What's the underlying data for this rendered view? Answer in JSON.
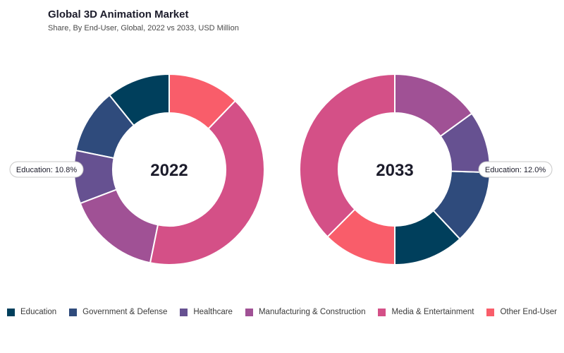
{
  "chart_data": {
    "type": "donut",
    "title": "Global 3D Animation Market",
    "subtitle": "Share, By End-User, Global, 2022 vs 2033, USD Million",
    "categories": [
      "Education",
      "Government & Defense",
      "Healthcare",
      "Manufacturing & Construction",
      "Media & Entertainment",
      "Other End-User"
    ],
    "colors": [
      "#003f5c",
      "#2f4b7c",
      "#665191",
      "#a05195",
      "#d45087",
      "#f95d6a"
    ],
    "legend_position": "bottom",
    "charts": [
      {
        "center_label": "2022",
        "values": [
          10.8,
          11.0,
          9.0,
          16.0,
          41.0,
          12.2
        ],
        "callout": {
          "category": "Education",
          "text": "Education: 10.8%"
        }
      },
      {
        "center_label": "2033",
        "values": [
          12.0,
          12.5,
          10.5,
          15.0,
          37.5,
          12.5
        ],
        "callout": {
          "category": "Education",
          "text": "Education: 12.0%"
        }
      }
    ]
  }
}
